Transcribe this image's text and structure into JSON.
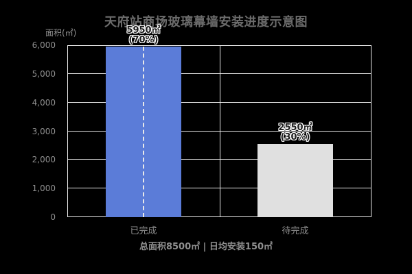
{
  "title": "天府站商场玻璃幕墙安装进度示意图",
  "footer": "总面积8500㎡ | 日均安装150㎡",
  "colors": {
    "background": "#000000",
    "title_text": "#6b6b6b",
    "axis_text": "#8f8f8f",
    "grid_line": "#ececec",
    "bar_completed": "#5b7cd8",
    "bar_pending": "#e0e0e0",
    "bar_label_fill": "#1c1c1c",
    "bar_label_outline": "#ffffff",
    "dash_marker": "#e8e8e8"
  },
  "chart_data": {
    "type": "bar",
    "title": "天府站商场玻璃幕墙安装进度示意图",
    "xlabel": "",
    "ylabel": "面积(㎡)",
    "categories": [
      "已完成",
      "待完成"
    ],
    "values": [
      5950,
      2550
    ],
    "value_labels": [
      [
        "5950㎡",
        "(70%)"
      ],
      [
        "2550㎡",
        "(30%)"
      ]
    ],
    "bar_colors": [
      "#5b7cd8",
      "#e0e0e0"
    ],
    "center_dash": [
      true,
      false
    ],
    "ylim": [
      0,
      6000
    ],
    "ytick_step": 1000,
    "ytick_labels": [
      "0",
      "1,000",
      "2,000",
      "3,000",
      "4,000",
      "5,000",
      "6,000"
    ],
    "grid": true,
    "legend_position": "none",
    "annotations": [
      "总面积8500㎡ | 日均安装150㎡"
    ]
  }
}
